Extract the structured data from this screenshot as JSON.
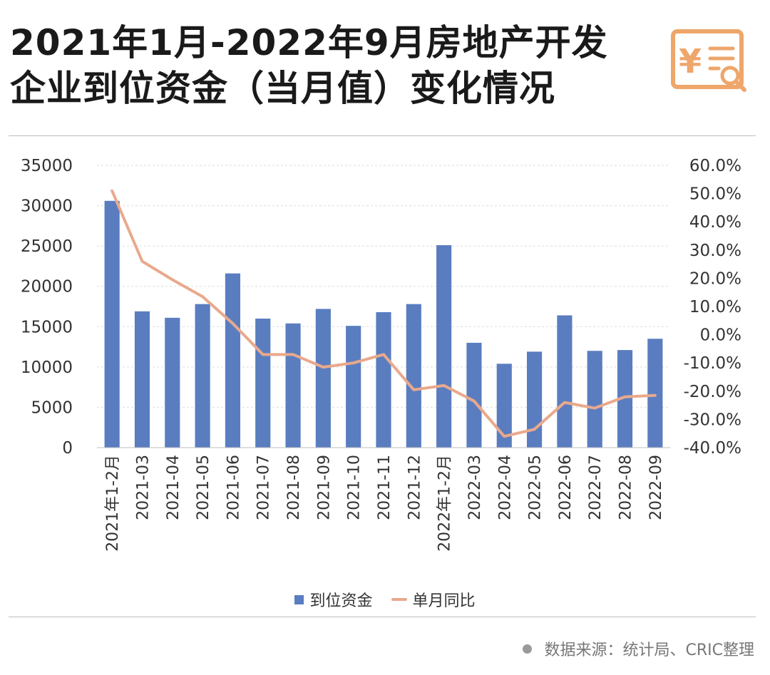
{
  "title": {
    "line1": "2021年1月-2022年9月房地产开发",
    "line2": "企业到位资金（当月值）变化情况"
  },
  "chart_data": {
    "type": "bar",
    "categories": [
      "2021年1-2月",
      "2021-03",
      "2021-04",
      "2021-05",
      "2021-06",
      "2021-07",
      "2021-08",
      "2021-09",
      "2021-10",
      "2021-11",
      "2021-12",
      "2022年1-2月",
      "2022-03",
      "2022-04",
      "2022-05",
      "2022-06",
      "2022-07",
      "2022-08",
      "2022-09"
    ],
    "series": [
      {
        "name": "到位资金",
        "type": "bar",
        "axis": "left",
        "color": "#5a7dc0",
        "values": [
          30600,
          16900,
          16100,
          17800,
          21600,
          16000,
          15400,
          17200,
          15100,
          16800,
          17800,
          25100,
          13000,
          10400,
          11900,
          16400,
          12000,
          12100,
          13500
        ]
      },
      {
        "name": "单月同比",
        "type": "line",
        "axis": "right",
        "color": "#e9a98c",
        "values": [
          51.0,
          26.0,
          19.5,
          13.5,
          4.0,
          -7.0,
          -7.0,
          -11.5,
          -10.0,
          -7.0,
          -19.5,
          -18.0,
          -23.5,
          -36.0,
          -33.5,
          -24.0,
          -26.0,
          -22.0,
          -21.5
        ]
      }
    ],
    "left_axis": {
      "ylim": [
        0,
        35000
      ],
      "ticks": [
        "0",
        "5000",
        "10000",
        "15000",
        "20000",
        "25000",
        "30000",
        "35000"
      ]
    },
    "right_axis": {
      "ylim": [
        -40,
        60
      ],
      "ticks": [
        "-40.0%",
        "-30.0%",
        "-20.0%",
        "-10.0%",
        "0.0%",
        "10.0%",
        "20.0%",
        "30.0%",
        "40.0%",
        "50.0%",
        "60.0%"
      ]
    },
    "grid": true,
    "legend_position": "bottom"
  },
  "logo": {
    "symbol": "¥"
  },
  "source": {
    "text": "数据来源：统计局、CRIC整理"
  }
}
